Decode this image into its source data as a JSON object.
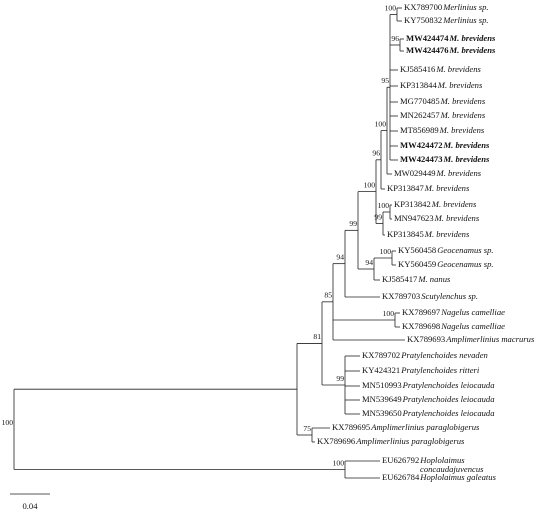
{
  "taxa": [
    {
      "accession": "KX789700",
      "species": "Merlinius sp.",
      "bold": false
    },
    {
      "accession": "KY750832",
      "species": "Merlinius sp.",
      "bold": false
    },
    {
      "accession": "MW424474",
      "species": "M. brevidens",
      "bold": true
    },
    {
      "accession": "MW424476",
      "species": "M. brevidens",
      "bold": true
    },
    {
      "accession": "KJ585416",
      "species": "M. brevidens",
      "bold": false
    },
    {
      "accession": "KP313844",
      "species": "M. brevidens",
      "bold": false
    },
    {
      "accession": "MG770485",
      "species": "M. brevidens",
      "bold": false
    },
    {
      "accession": "MN262457",
      "species": "M. brevidens",
      "bold": false
    },
    {
      "accession": "MT856989",
      "species": "M. brevidens",
      "bold": false
    },
    {
      "accession": "MW424472",
      "species": "M. brevidens",
      "bold": true
    },
    {
      "accession": "MW424473",
      "species": "M. brevidens",
      "bold": true
    },
    {
      "accession": "MW029449",
      "species": "M. brevidens",
      "bold": false
    },
    {
      "accession": "KP313847",
      "species": "M. brevidens",
      "bold": false
    },
    {
      "accession": "KP313842",
      "species": "M. brevidens",
      "bold": false
    },
    {
      "accession": "MN947623",
      "species": "M. brevidens",
      "bold": false
    },
    {
      "accession": "KP313845",
      "species": "M. brevidens",
      "bold": false
    },
    {
      "accession": "KY560458",
      "species": "Geocenamus sp.",
      "bold": false
    },
    {
      "accession": "KY560459",
      "species": "Geocenamus sp.",
      "bold": false
    },
    {
      "accession": "KJ585417",
      "species": "M. nanus",
      "bold": false
    },
    {
      "accession": "KX789703",
      "species": "Scutylenchus sp.",
      "bold": false
    },
    {
      "accession": "KX789697",
      "species": "Nagelus camelliae",
      "bold": false
    },
    {
      "accession": "KX789698",
      "species": "Nagelus camelliae",
      "bold": false
    },
    {
      "accession": "KX789693",
      "species": "Amplimerlinius macrurus",
      "bold": false
    },
    {
      "accession": "KX789702",
      "species": "Pratylenchoides nevaden",
      "bold": false
    },
    {
      "accession": "KY424321",
      "species": "Pratylenchoides ritteri",
      "bold": false
    },
    {
      "accession": "MN510993",
      "species": "Pratylenchoides leiocauda",
      "bold": false
    },
    {
      "accession": "MN539649",
      "species": "Pratylenchoides leiocauda",
      "bold": false
    },
    {
      "accession": "MN539650",
      "species": "Pratylenchoides leiocauda",
      "bold": false
    },
    {
      "accession": "KX789695",
      "species": "Amplimerlinius paraglobigerus",
      "bold": false
    },
    {
      "accession": "KX789696",
      "species": "Amplimerlinius paraglobigerus",
      "bold": false
    },
    {
      "accession": "EU626792",
      "species": "Hoplolaimus",
      "species_line2": "concaudajuvencus",
      "bold": false
    },
    {
      "accession": "EU626784",
      "species": "Hoplolaimus galeatus",
      "bold": false
    }
  ],
  "bootstrap": [
    "100",
    "96",
    "95",
    "100",
    "96",
    "100",
    "99",
    "100",
    "99",
    "100",
    "94",
    "94",
    "100",
    "85",
    "81",
    "99",
    "100",
    "75",
    "100"
  ],
  "scale_bar": "0.04"
}
